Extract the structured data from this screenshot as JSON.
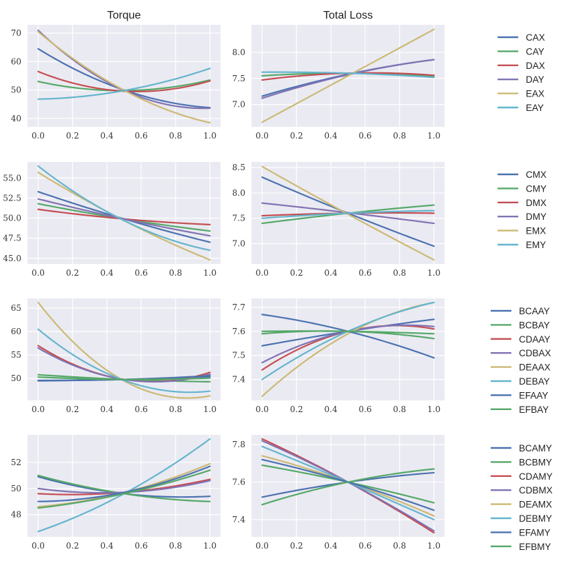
{
  "column_titles": [
    "Torque",
    "Total Loss"
  ],
  "colors": {
    "blue": "#4c72b0",
    "green": "#55a868",
    "red": "#c44e52",
    "purple": "#8172b2",
    "gold": "#ccb974",
    "cyan": "#64b5cd"
  },
  "chart_data": [
    {
      "type": "line",
      "row": 0,
      "col": 0,
      "title": "Torque",
      "xlim": [
        0,
        1
      ],
      "ylim": [
        38.5,
        71.5
      ],
      "xticks": [
        0.0,
        0.2,
        0.4,
        0.6,
        0.8,
        1.0
      ],
      "xtick_labels": [
        "0.0",
        "0.2",
        "0.4",
        "0.6",
        "0.8",
        "1.0"
      ],
      "yticks": [
        40,
        50,
        60,
        70
      ],
      "ytick_labels": [
        "40",
        "50",
        "60",
        "70"
      ],
      "x": [
        0.0,
        0.5,
        1.0
      ],
      "series": [
        {
          "name": "CAX",
          "color": "blue",
          "values": [
            64.5,
            50.0,
            43.8
          ]
        },
        {
          "name": "CAY",
          "color": "green",
          "values": [
            53.0,
            49.8,
            53.5
          ]
        },
        {
          "name": "DAX",
          "color": "red",
          "values": [
            56.5,
            49.6,
            53.2
          ]
        },
        {
          "name": "DAY",
          "color": "purple",
          "values": [
            71.0,
            49.9,
            43.6
          ]
        },
        {
          "name": "EAX",
          "color": "gold",
          "values": [
            70.5,
            49.9,
            38.5
          ]
        },
        {
          "name": "EAY",
          "color": "cyan",
          "values": [
            46.8,
            49.8,
            57.6
          ]
        }
      ]
    },
    {
      "type": "line",
      "row": 0,
      "col": 1,
      "title": "Total Loss",
      "xlim": [
        0,
        1
      ],
      "ylim": [
        6.65,
        8.45
      ],
      "xticks": [
        0.0,
        0.2,
        0.4,
        0.6,
        0.8,
        1.0
      ],
      "xtick_labels": [
        "0.0",
        "0.2",
        "0.4",
        "0.6",
        "0.8",
        "1.0"
      ],
      "yticks": [
        7.0,
        7.5,
        8.0
      ],
      "ytick_labels": [
        "7.0",
        "7.5",
        "8.0"
      ],
      "x": [
        0.0,
        0.5,
        1.0
      ],
      "series": [
        {
          "name": "CAX",
          "color": "blue",
          "values": [
            7.16,
            7.58,
            7.86
          ]
        },
        {
          "name": "CAY",
          "color": "green",
          "values": [
            7.55,
            7.6,
            7.54
          ]
        },
        {
          "name": "DAX",
          "color": "red",
          "values": [
            7.47,
            7.6,
            7.56
          ]
        },
        {
          "name": "DAY",
          "color": "purple",
          "values": [
            7.12,
            7.57,
            7.86
          ]
        },
        {
          "name": "EAX",
          "color": "gold",
          "values": [
            6.66,
            7.55,
            8.44
          ]
        },
        {
          "name": "EAY",
          "color": "cyan",
          "values": [
            7.62,
            7.6,
            7.52
          ]
        }
      ]
    },
    {
      "type": "line",
      "row": 1,
      "col": 0,
      "title": "",
      "xlim": [
        0,
        1
      ],
      "ylim": [
        44.8,
        56.5
      ],
      "xticks": [
        0.0,
        0.2,
        0.4,
        0.6,
        0.8,
        1.0
      ],
      "xtick_labels": [
        "0.0",
        "0.2",
        "0.4",
        "0.6",
        "0.8",
        "1.0"
      ],
      "yticks": [
        45.0,
        47.5,
        50.0,
        52.5,
        55.0
      ],
      "ytick_labels": [
        "45.0",
        "47.5",
        "50.0",
        "52.5",
        "55.0"
      ],
      "x": [
        0.0,
        0.5,
        1.0
      ],
      "series": [
        {
          "name": "CMX",
          "color": "blue",
          "values": [
            53.3,
            49.9,
            47.0
          ]
        },
        {
          "name": "CMY",
          "color": "green",
          "values": [
            51.8,
            49.9,
            48.4
          ]
        },
        {
          "name": "DMX",
          "color": "red",
          "values": [
            51.1,
            49.9,
            49.2
          ]
        },
        {
          "name": "DMY",
          "color": "purple",
          "values": [
            52.4,
            49.9,
            47.8
          ]
        },
        {
          "name": "EMX",
          "color": "gold",
          "values": [
            55.7,
            49.7,
            44.8
          ]
        },
        {
          "name": "EMY",
          "color": "cyan",
          "values": [
            56.5,
            49.7,
            46.0
          ]
        }
      ]
    },
    {
      "type": "line",
      "row": 1,
      "col": 1,
      "title": "",
      "xlim": [
        0,
        1
      ],
      "ylim": [
        6.68,
        8.53
      ],
      "xticks": [
        0.0,
        0.2,
        0.4,
        0.6,
        0.8,
        1.0
      ],
      "xtick_labels": [
        "0.0",
        "0.2",
        "0.4",
        "0.6",
        "0.8",
        "1.0"
      ],
      "yticks": [
        7.0,
        7.5,
        8.0,
        8.5
      ],
      "ytick_labels": [
        "7.0",
        "7.5",
        "8.0",
        "8.5"
      ],
      "x": [
        0.0,
        0.5,
        1.0
      ],
      "series": [
        {
          "name": "CMX",
          "color": "blue",
          "values": [
            8.31,
            7.6,
            6.95
          ]
        },
        {
          "name": "CMY",
          "color": "green",
          "values": [
            7.4,
            7.6,
            7.76
          ]
        },
        {
          "name": "DMX",
          "color": "red",
          "values": [
            7.55,
            7.6,
            7.6
          ]
        },
        {
          "name": "DMY",
          "color": "purple",
          "values": [
            7.8,
            7.61,
            7.4
          ]
        },
        {
          "name": "EMX",
          "color": "gold",
          "values": [
            8.52,
            7.58,
            6.68
          ]
        },
        {
          "name": "EMY",
          "color": "cyan",
          "values": [
            7.5,
            7.6,
            7.65
          ]
        }
      ]
    },
    {
      "type": "line",
      "row": 2,
      "col": 0,
      "title": "",
      "xlim": [
        0,
        1
      ],
      "ylim": [
        46.2,
        66.2
      ],
      "xticks": [
        0.0,
        0.2,
        0.4,
        0.6,
        0.8,
        1.0
      ],
      "xtick_labels": [
        "0.0",
        "0.2",
        "0.4",
        "0.6",
        "0.8",
        "1.0"
      ],
      "yticks": [
        50,
        55,
        60,
        65
      ],
      "ytick_labels": [
        "50",
        "55",
        "60",
        "65"
      ],
      "x": [
        0.0,
        0.5,
        1.0
      ],
      "series": [
        {
          "name": "BCAAY",
          "color": "blue",
          "values": [
            49.5,
            49.8,
            50.4
          ]
        },
        {
          "name": "BCBAY",
          "color": "green",
          "values": [
            50.8,
            49.8,
            49.3
          ]
        },
        {
          "name": "CDAAY",
          "color": "red",
          "values": [
            57.0,
            49.8,
            51.3
          ]
        },
        {
          "name": "CDBAX",
          "color": "purple",
          "values": [
            56.5,
            49.8,
            50.9
          ]
        },
        {
          "name": "DEAAX",
          "color": "gold",
          "values": [
            66.2,
            49.5,
            46.3
          ]
        },
        {
          "name": "DEBAY",
          "color": "cyan",
          "values": [
            60.5,
            49.6,
            47.3
          ]
        },
        {
          "name": "EFAAY",
          "color": "blue",
          "values": [
            49.6,
            49.8,
            50.6
          ]
        },
        {
          "name": "EFBAY",
          "color": "green",
          "values": [
            50.3,
            49.8,
            50.1
          ]
        }
      ]
    },
    {
      "type": "line",
      "row": 2,
      "col": 1,
      "title": "",
      "xlim": [
        0,
        1
      ],
      "ylim": [
        7.33,
        7.72
      ],
      "xticks": [
        0.0,
        0.2,
        0.4,
        0.6,
        0.8,
        1.0
      ],
      "xtick_labels": [
        "0.0",
        "0.2",
        "0.4",
        "0.6",
        "0.8",
        "1.0"
      ],
      "yticks": [
        7.4,
        7.5,
        7.6,
        7.7
      ],
      "ytick_labels": [
        "7.4",
        "7.5",
        "7.6",
        "7.7"
      ],
      "x": [
        0.0,
        0.5,
        1.0
      ],
      "series": [
        {
          "name": "BCAAY",
          "color": "blue",
          "values": [
            7.54,
            7.6,
            7.65
          ]
        },
        {
          "name": "BCBAY",
          "color": "green",
          "values": [
            7.6,
            7.6,
            7.59
          ]
        },
        {
          "name": "CDAAY",
          "color": "red",
          "values": [
            7.44,
            7.6,
            7.61
          ]
        },
        {
          "name": "CDBAX",
          "color": "purple",
          "values": [
            7.47,
            7.6,
            7.62
          ]
        },
        {
          "name": "DEAAX",
          "color": "gold",
          "values": [
            7.33,
            7.59,
            7.72
          ]
        },
        {
          "name": "DEBAY",
          "color": "cyan",
          "values": [
            7.4,
            7.6,
            7.72
          ]
        },
        {
          "name": "EFAAY",
          "color": "blue",
          "values": [
            7.67,
            7.6,
            7.49
          ]
        },
        {
          "name": "EFBAY",
          "color": "green",
          "values": [
            7.59,
            7.6,
            7.57
          ]
        }
      ]
    },
    {
      "type": "line",
      "row": 3,
      "col": 0,
      "title": "",
      "xlim": [
        0,
        1
      ],
      "ylim": [
        46.6,
        53.8
      ],
      "xticks": [
        0.0,
        0.2,
        0.4,
        0.6,
        0.8,
        1.0
      ],
      "xtick_labels": [
        "0.0",
        "0.2",
        "0.4",
        "0.6",
        "0.8",
        "1.0"
      ],
      "yticks": [
        48,
        50,
        52
      ],
      "ytick_labels": [
        "48",
        "50",
        "52"
      ],
      "x": [
        0.0,
        0.5,
        1.0
      ],
      "series": [
        {
          "name": "BCAMY",
          "color": "blue",
          "values": [
            50.9,
            49.6,
            49.4
          ]
        },
        {
          "name": "BCBMY",
          "color": "green",
          "values": [
            51.0,
            49.6,
            49.0
          ]
        },
        {
          "name": "CDAMY",
          "color": "red",
          "values": [
            49.6,
            49.7,
            50.7
          ]
        },
        {
          "name": "CDBMX",
          "color": "purple",
          "values": [
            50.0,
            49.7,
            50.6
          ]
        },
        {
          "name": "DEAMX",
          "color": "gold",
          "values": [
            48.6,
            49.7,
            51.9
          ]
        },
        {
          "name": "DEBMY",
          "color": "cyan",
          "values": [
            46.7,
            49.6,
            53.8
          ]
        },
        {
          "name": "EFAMY",
          "color": "blue",
          "values": [
            49.0,
            49.7,
            51.7
          ]
        },
        {
          "name": "EFBMY",
          "color": "green",
          "values": [
            48.5,
            49.6,
            51.4
          ]
        }
      ]
    },
    {
      "type": "line",
      "row": 3,
      "col": 1,
      "title": "",
      "xlim": [
        0,
        1
      ],
      "ylim": [
        7.33,
        7.83
      ],
      "xticks": [
        0.0,
        0.2,
        0.4,
        0.6,
        0.8,
        1.0
      ],
      "xtick_labels": [
        "0.0",
        "0.2",
        "0.4",
        "0.6",
        "0.8",
        "1.0"
      ],
      "yticks": [
        7.4,
        7.6,
        7.8
      ],
      "ytick_labels": [
        "7.4",
        "7.6",
        "7.8"
      ],
      "x": [
        0.0,
        0.5,
        1.0
      ],
      "series": [
        {
          "name": "BCAMY",
          "color": "blue",
          "values": [
            7.52,
            7.6,
            7.65
          ]
        },
        {
          "name": "BCBMY",
          "color": "green",
          "values": [
            7.69,
            7.6,
            7.49
          ]
        },
        {
          "name": "CDAMY",
          "color": "red",
          "values": [
            7.83,
            7.6,
            7.33
          ]
        },
        {
          "name": "CDBMX",
          "color": "purple",
          "values": [
            7.82,
            7.6,
            7.34
          ]
        },
        {
          "name": "DEAMX",
          "color": "gold",
          "values": [
            7.74,
            7.6,
            7.42
          ]
        },
        {
          "name": "DEBMY",
          "color": "cyan",
          "values": [
            7.79,
            7.6,
            7.4
          ]
        },
        {
          "name": "EFAMY",
          "color": "blue",
          "values": [
            7.72,
            7.6,
            7.45
          ]
        },
        {
          "name": "EFBMY",
          "color": "green",
          "values": [
            7.48,
            7.6,
            7.67
          ]
        }
      ]
    }
  ]
}
